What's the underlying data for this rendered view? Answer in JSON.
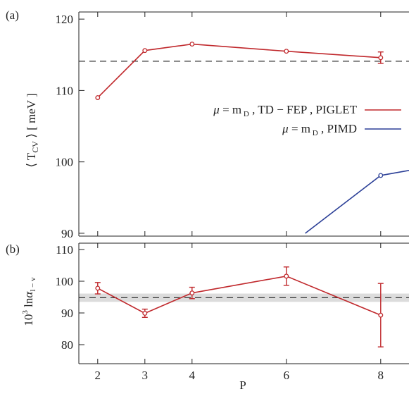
{
  "chart_data": [
    {
      "panel_label": "(a)",
      "type": "line",
      "xlabel": "",
      "ylabel": "⟨ T_CV ⟩ [ meV ]",
      "xlim": [
        1.6,
        8.6
      ],
      "ylim": [
        89.6,
        121.0
      ],
      "yticks": [
        90,
        100,
        110,
        120
      ],
      "grid": false,
      "legend_placement": "right",
      "reference_line": {
        "y": 114.1,
        "style": "dashed"
      },
      "series": [
        {
          "name": "μ = m_D ,  TD − FEP ,  PIGLET",
          "color": "#c0282c",
          "x": [
            2,
            3,
            4,
            6,
            8
          ],
          "y": [
            109.0,
            115.6,
            116.5,
            115.5,
            114.6
          ],
          "yerr": [
            0,
            0,
            0,
            0,
            0.8
          ]
        },
        {
          "name": "μ = m_D ,  PIMD",
          "color": "#2b3f97",
          "x": [
            6.4,
            8,
            8.6
          ],
          "y": [
            90.0,
            98.1,
            98.8
          ],
          "yerr": [
            0,
            0,
            0
          ]
        }
      ]
    },
    {
      "panel_label": "(b)",
      "type": "line",
      "xlabel": "P",
      "ylabel": "10^3 ln α_l−v",
      "xlim": [
        1.6,
        8.6
      ],
      "ylim": [
        74.0,
        112.0
      ],
      "xticks": [
        2,
        3,
        4,
        6,
        8
      ],
      "yticks": [
        80,
        90,
        100,
        110
      ],
      "grid": false,
      "reference_line": {
        "y": 94.8,
        "style": "dashed"
      },
      "reference_band": {
        "y_low": 93.5,
        "y_high": 96.1
      },
      "series": [
        {
          "name": "",
          "color": "#c0282c",
          "x": [
            2,
            3,
            4,
            6,
            8
          ],
          "y": [
            97.8,
            89.9,
            96.3,
            101.6,
            89.3
          ],
          "yerr": [
            1.8,
            1.3,
            1.8,
            2.9,
            10.0
          ]
        }
      ]
    }
  ]
}
